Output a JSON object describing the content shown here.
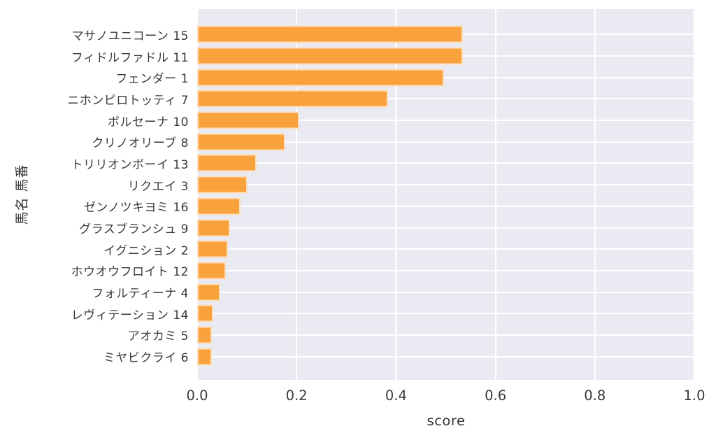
{
  "figure": {
    "background": "#ffffff"
  },
  "chart_data": {
    "type": "bar",
    "orientation": "horizontal",
    "title": "",
    "xlabel": "score",
    "ylabel": "馬名 馬番",
    "xlim": [
      0.0,
      1.0
    ],
    "xtick_labels": [
      "0.0",
      "0.2",
      "0.4",
      "0.6",
      "0.8",
      "1.0"
    ],
    "xtick_values": [
      0.0,
      0.2,
      0.4,
      0.6,
      0.8,
      1.0
    ],
    "grid": true,
    "legend": "none",
    "categories": [
      "マサノユニコーン 15",
      "フィドルファドル 11",
      "フェンダー 1",
      "ニホンピロトッティ 7",
      "ボルセーナ 10",
      "クリノオリーブ 8",
      "トリリオンボーイ 13",
      "リクエイ 3",
      "ゼンノツキヨミ 16",
      "グラスブランシュ 9",
      "イグニション 2",
      "ホウオウフロイト 12",
      "フォルティーナ 4",
      "レヴィテーション 14",
      "アオカミ 5",
      "ミヤビクライ 6"
    ],
    "values": [
      0.535,
      0.534,
      0.497,
      0.384,
      0.206,
      0.177,
      0.12,
      0.101,
      0.087,
      0.066,
      0.062,
      0.058,
      0.046,
      0.032,
      0.03,
      0.03
    ],
    "colors": {
      "bar_fill": "#F9A13C",
      "bar_edge": "rgba(255,255,255,0.65)",
      "plot_background": "#EAEAF2",
      "grid_line": "#FFFFFF",
      "tick_text": "#3a3a3a",
      "label_text": "#333333"
    }
  }
}
